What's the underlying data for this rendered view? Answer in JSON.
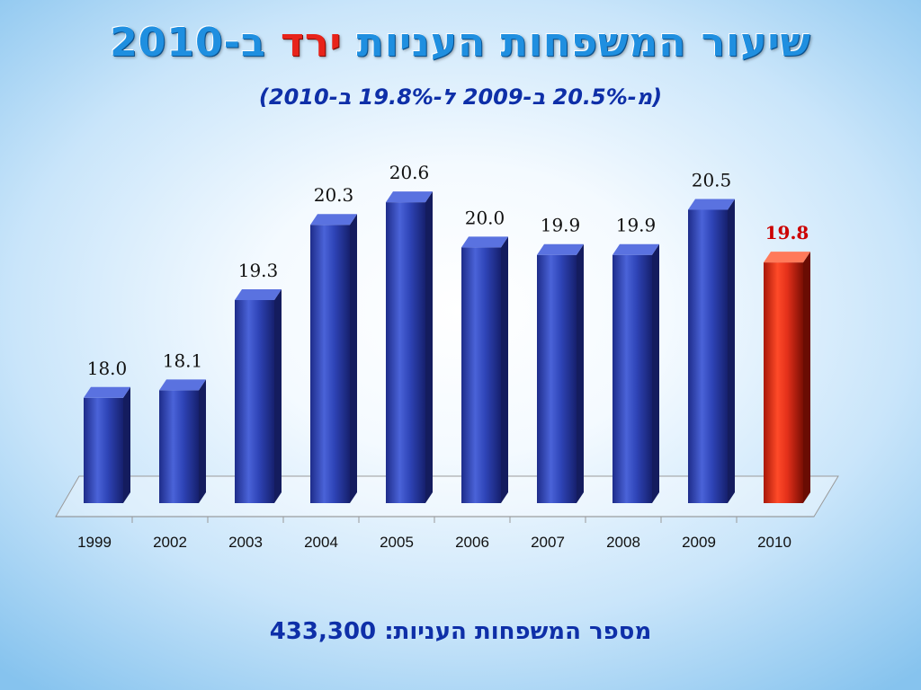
{
  "title": {
    "main": "שיעור המשפחות העניות",
    "accent": "ירד",
    "tail": "ב-2010"
  },
  "subtitle": "(מ-20.5% ב-2009 ל-19.8% ב-2010)",
  "footer": {
    "label": "מספר המשפחות העניות:",
    "value": "433,300"
  },
  "colors": {
    "bar": "#2f45b8",
    "highlight": "#e3301a",
    "title": "#1f8fe0"
  },
  "chart_data": {
    "type": "bar",
    "categories": [
      "1999",
      "2002",
      "2003",
      "2004",
      "2005",
      "2006",
      "2007",
      "2008",
      "2009",
      "2010"
    ],
    "values": [
      18.0,
      18.1,
      19.3,
      20.3,
      20.6,
      20.0,
      19.9,
      19.9,
      20.5,
      19.8
    ],
    "labels": [
      "18.0",
      "18.1",
      "19.3",
      "20.3",
      "20.6",
      "20.0",
      "19.9",
      "19.9",
      "20.5",
      "19.8"
    ],
    "highlight_index": 9,
    "ylim": [
      16.6,
      20.9
    ],
    "grid": false
  }
}
